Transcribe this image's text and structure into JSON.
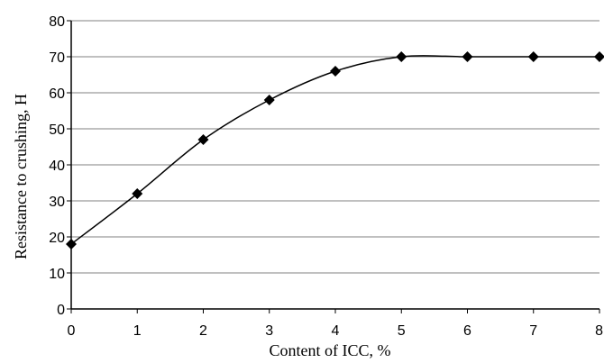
{
  "chart_data": {
    "type": "line",
    "xlabel": "Content of ICC, %",
    "ylabel": "Resistance to crushing, H",
    "x": [
      0,
      1,
      2,
      3,
      4,
      5,
      6,
      7,
      8
    ],
    "series": [
      {
        "values": [
          18,
          32,
          47,
          58,
          66,
          70,
          70,
          70,
          70
        ]
      }
    ],
    "xlim": [
      0,
      8
    ],
    "ylim": [
      0,
      80
    ],
    "xticks": [
      "0",
      "1",
      "2",
      "3",
      "4",
      "5",
      "6",
      "7",
      "8"
    ],
    "yticks": [
      "0",
      "10",
      "20",
      "30",
      "40",
      "50",
      "60",
      "70",
      "80"
    ],
    "grid": "horizontal",
    "marker": "diamond",
    "line_color": "#000000",
    "grid_color": "#808080"
  }
}
